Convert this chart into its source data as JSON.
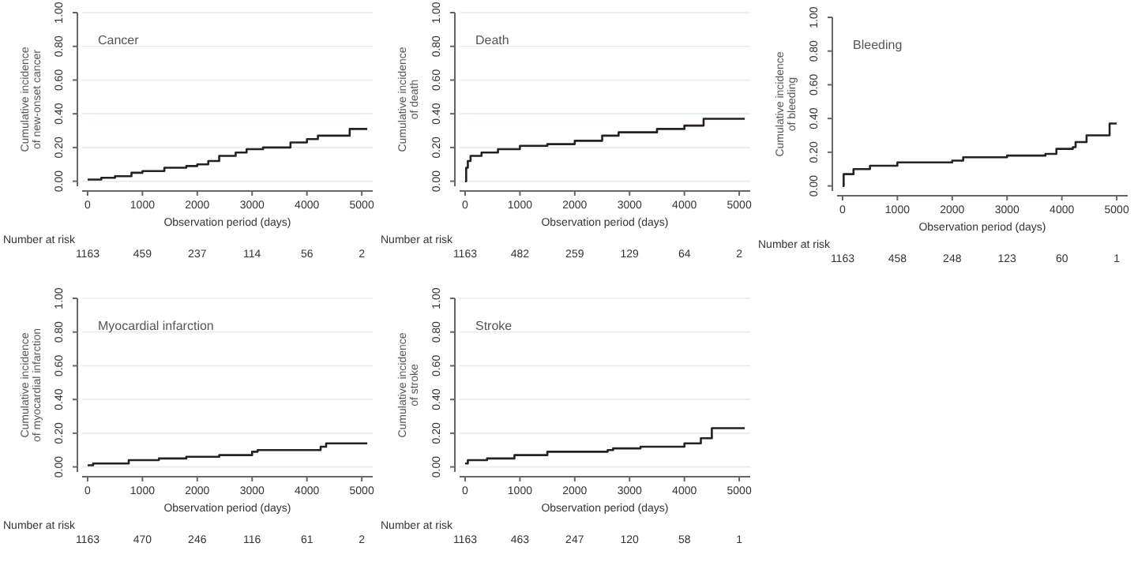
{
  "chart_data": [
    {
      "type": "step",
      "title": "Cancer",
      "xlabel": "Observation period (days)",
      "ylabel": "Cumulative incidence\nof new-onset cancer",
      "xlim": [
        -100,
        5200
      ],
      "ylim": [
        -0.03,
        1
      ],
      "xticks": [
        0,
        1000,
        2000,
        3000,
        4000,
        5000
      ],
      "yticks": [
        {
          "value": 0,
          "label": "0.00"
        },
        {
          "value": 0.2,
          "label": "0.20"
        },
        {
          "value": 0.4,
          "label": "0.40"
        },
        {
          "value": 0.6,
          "label": "0.60"
        },
        {
          "value": 0.8,
          "label": "0.80"
        },
        {
          "value": 1,
          "label": "1.00"
        }
      ],
      "grid": "y",
      "line_style": "solid",
      "marker": "none",
      "annotations": [
        "Number at risk",
        "1163",
        "459",
        "237",
        "114",
        "56",
        "2"
      ],
      "series": [
        {
          "color": "#222222",
          "x": [
            0,
            250,
            500,
            800,
            1000,
            1400,
            1800,
            2000,
            2200,
            2400,
            2700,
            2900,
            3200,
            3650,
            3700,
            4000,
            4200,
            4750,
            4780,
            5100
          ],
          "values": [
            0.01,
            0.02,
            0.03,
            0.05,
            0.06,
            0.08,
            0.09,
            0.1,
            0.12,
            0.15,
            0.17,
            0.19,
            0.2,
            0.2,
            0.23,
            0.25,
            0.27,
            0.27,
            0.31,
            0.31
          ]
        }
      ]
    },
    {
      "type": "step",
      "title": "Death",
      "xlabel": "Observation period (days)",
      "ylabel": "Cumulative incidence\nof death",
      "xlim": [
        -100,
        5200
      ],
      "ylim": [
        -0.03,
        1
      ],
      "xticks": [
        0,
        1000,
        2000,
        3000,
        4000,
        5000
      ],
      "yticks": [
        {
          "value": 0,
          "label": "0.00"
        },
        {
          "value": 0.2,
          "label": "0.20"
        },
        {
          "value": 0.4,
          "label": "0.40"
        },
        {
          "value": 0.6,
          "label": "0.60"
        },
        {
          "value": 0.8,
          "label": "0.80"
        },
        {
          "value": 1,
          "label": "1.00"
        }
      ],
      "grid": "y",
      "line_style": "solid",
      "marker": "none",
      "annotations": [
        "Number at risk",
        "1163",
        "482",
        "259",
        "129",
        "64",
        "2"
      ],
      "series": [
        {
          "color": "#222222",
          "x": [
            0,
            20,
            50,
            100,
            300,
            600,
            1000,
            1500,
            2000,
            2500,
            2800,
            3500,
            4000,
            4300,
            4350,
            5100
          ],
          "values": [
            0,
            0.08,
            0.12,
            0.15,
            0.17,
            0.19,
            0.21,
            0.22,
            0.24,
            0.27,
            0.29,
            0.31,
            0.33,
            0.33,
            0.37,
            0.37
          ]
        }
      ]
    },
    {
      "type": "step",
      "title": "Bleeding",
      "xlabel": "Observation period (days)",
      "ylabel": "Cumulative incidence\nof bleeding",
      "xlim": [
        -100,
        5200
      ],
      "ylim": [
        -0.03,
        1
      ],
      "xticks": [
        0,
        1000,
        2000,
        3000,
        4000,
        5000
      ],
      "yticks": [
        {
          "value": 0,
          "label": "0.00"
        },
        {
          "value": 0.2,
          "label": "0.20"
        },
        {
          "value": 0.4,
          "label": "0.40"
        },
        {
          "value": 0.6,
          "label": "0.60"
        },
        {
          "value": 0.8,
          "label": "0.80"
        },
        {
          "value": 1,
          "label": "1.00"
        }
      ],
      "grid": false,
      "line_style": "solid",
      "marker": "none",
      "annotations": [
        "Number at risk",
        "1163",
        "458",
        "248",
        "123",
        "60",
        "1"
      ],
      "series": [
        {
          "color": "#222222",
          "x": [
            0,
            20,
            200,
            500,
            1000,
            1500,
            2000,
            2200,
            2700,
            3000,
            3700,
            3900,
            4200,
            4250,
            4450,
            4850,
            4870,
            5000
          ],
          "values": [
            0,
            0.07,
            0.1,
            0.12,
            0.14,
            0.14,
            0.15,
            0.17,
            0.17,
            0.18,
            0.19,
            0.22,
            0.23,
            0.26,
            0.3,
            0.3,
            0.37,
            0.37
          ]
        }
      ]
    },
    {
      "type": "step",
      "title": "Myocardial infarction",
      "xlabel": "Observation period (days)",
      "ylabel": "Cumulative incidence\nof myocardial infarction",
      "xlim": [
        -100,
        5200
      ],
      "ylim": [
        -0.03,
        1
      ],
      "xticks": [
        0,
        1000,
        2000,
        3000,
        4000,
        5000
      ],
      "yticks": [
        {
          "value": 0,
          "label": "0.00"
        },
        {
          "value": 0.2,
          "label": "0.20"
        },
        {
          "value": 0.4,
          "label": "0.40"
        },
        {
          "value": 0.6,
          "label": "0.60"
        },
        {
          "value": 0.8,
          "label": "0.80"
        },
        {
          "value": 1,
          "label": "1.00"
        }
      ],
      "grid": "y",
      "line_style": "solid",
      "marker": "none",
      "annotations": [
        "Number at risk",
        "1163",
        "470",
        "246",
        "116",
        "61",
        "2"
      ],
      "series": [
        {
          "color": "#222222",
          "x": [
            0,
            100,
            700,
            750,
            1300,
            1800,
            2400,
            2900,
            3000,
            3100,
            4200,
            4250,
            4350,
            5100
          ],
          "values": [
            0.01,
            0.02,
            0.02,
            0.04,
            0.05,
            0.06,
            0.07,
            0.07,
            0.09,
            0.1,
            0.1,
            0.12,
            0.14,
            0.14
          ]
        }
      ]
    },
    {
      "type": "step",
      "title": "Stroke",
      "xlabel": "Observation period (days)",
      "ylabel": "Cumulative incidence\nof stroke",
      "xlim": [
        -100,
        5200
      ],
      "ylim": [
        -0.03,
        1
      ],
      "xticks": [
        0,
        1000,
        2000,
        3000,
        4000,
        5000
      ],
      "yticks": [
        {
          "value": 0,
          "label": "0.00"
        },
        {
          "value": 0.2,
          "label": "0.20"
        },
        {
          "value": 0.4,
          "label": "0.40"
        },
        {
          "value": 0.6,
          "label": "0.60"
        },
        {
          "value": 0.8,
          "label": "0.80"
        },
        {
          "value": 1,
          "label": "1.00"
        }
      ],
      "grid": "y",
      "line_style": "solid",
      "marker": "none",
      "annotations": [
        "Number at risk",
        "1163",
        "463",
        "247",
        "120",
        "58",
        "1"
      ],
      "series": [
        {
          "color": "#222222",
          "x": [
            0,
            50,
            400,
            900,
            1500,
            2000,
            2600,
            2700,
            3200,
            3900,
            4000,
            4300,
            4500,
            5100
          ],
          "values": [
            0.02,
            0.04,
            0.05,
            0.07,
            0.09,
            0.09,
            0.1,
            0.11,
            0.12,
            0.12,
            0.14,
            0.17,
            0.23,
            0.23
          ]
        }
      ]
    }
  ]
}
